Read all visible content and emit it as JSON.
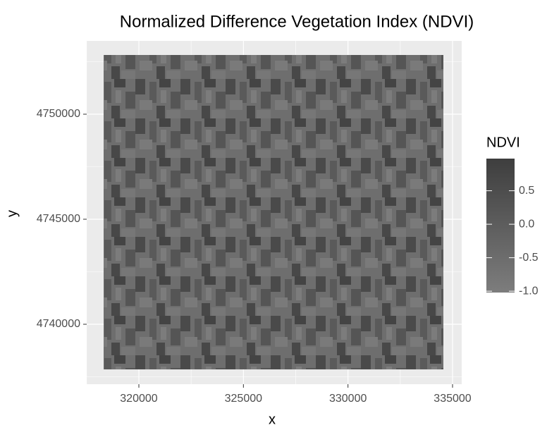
{
  "chart_data": {
    "type": "raster",
    "title": "Normalized Difference Vegetation Index (NDVI)",
    "x_label": "x",
    "y_label": "y",
    "xlim": [
      317506,
      335438
    ],
    "ylim": [
      4737148,
      4753490
    ],
    "xticks": [
      320000,
      325000,
      330000,
      335000
    ],
    "yticks": [
      4740000,
      4745000,
      4750000
    ],
    "x_minor_ticks": [
      317500,
      322500,
      327500,
      332500
    ],
    "y_minor_ticks": [
      4737500,
      4742500,
      4747500,
      4752500
    ],
    "x_extent": [
      318315,
      334562
    ],
    "y_extent": [
      4737852,
      4752819
    ],
    "grid": true,
    "legend": {
      "title": "NDVI",
      "position": "right",
      "limits": [
        -1.02,
        0.98
      ],
      "low_color": "#7d7d7d",
      "high_color": "#3e3e3e",
      "ticks": [
        {
          "value": -1.0,
          "label": "-1.0"
        },
        -0.5,
        {
          "value": 0.0,
          "label": "0.0"
        },
        0.5
      ]
    }
  }
}
